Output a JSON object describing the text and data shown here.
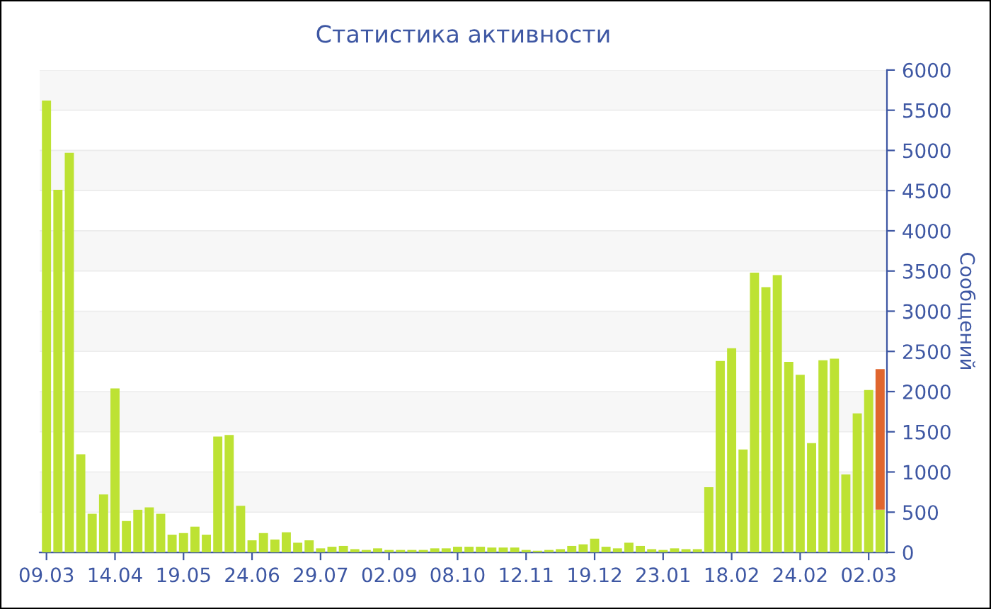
{
  "chart_data": {
    "type": "bar",
    "title": "Статистика активности",
    "ylabel": "Сообщений",
    "stacked": true,
    "categories": [
      "09.03",
      null,
      null,
      null,
      null,
      null,
      "14.04",
      null,
      null,
      null,
      null,
      null,
      "19.05",
      null,
      null,
      null,
      null,
      null,
      "24.06",
      null,
      null,
      null,
      null,
      null,
      "29.07",
      null,
      null,
      null,
      null,
      null,
      "02.09",
      null,
      null,
      null,
      null,
      null,
      "08.10",
      null,
      null,
      null,
      null,
      null,
      "12.11",
      null,
      null,
      null,
      null,
      null,
      "19.12",
      null,
      null,
      null,
      null,
      null,
      "23.01",
      null,
      null,
      null,
      null,
      null,
      "18.02",
      null,
      null,
      null,
      null,
      null,
      "24.02",
      null,
      null,
      null,
      null,
      null,
      "02.03",
      null
    ],
    "series": [
      {
        "color": "#bde233",
        "values": [
          5620,
          4510,
          4970,
          1220,
          480,
          720,
          2040,
          390,
          530,
          560,
          480,
          220,
          240,
          320,
          220,
          1440,
          1460,
          580,
          150,
          240,
          160,
          250,
          120,
          150,
          50,
          70,
          80,
          40,
          30,
          50,
          30,
          30,
          30,
          30,
          50,
          50,
          70,
          70,
          70,
          60,
          60,
          60,
          30,
          20,
          30,
          40,
          80,
          100,
          170,
          70,
          50,
          120,
          80,
          40,
          30,
          50,
          40,
          40,
          810,
          2380,
          2540,
          1280,
          3480,
          3300,
          3450,
          2370,
          2210,
          1360,
          2390,
          2410,
          970,
          1730,
          2020,
          530
        ]
      },
      {
        "color": "#e0662e",
        "values": [
          null,
          null,
          null,
          null,
          null,
          null,
          null,
          null,
          null,
          null,
          null,
          null,
          null,
          null,
          null,
          null,
          null,
          null,
          null,
          null,
          null,
          null,
          null,
          null,
          null,
          null,
          null,
          null,
          null,
          null,
          null,
          null,
          null,
          null,
          null,
          null,
          null,
          null,
          null,
          null,
          null,
          null,
          null,
          null,
          null,
          null,
          null,
          null,
          null,
          null,
          null,
          null,
          null,
          null,
          null,
          null,
          null,
          null,
          null,
          null,
          null,
          null,
          null,
          null,
          null,
          null,
          null,
          null,
          null,
          null,
          null,
          null,
          null,
          1750
        ]
      }
    ],
    "ylim": [
      0,
      6000
    ],
    "yticks": [
      0,
      500,
      1000,
      1500,
      2000,
      2500,
      3000,
      3500,
      4000,
      4500,
      5000,
      5500,
      6000
    ],
    "grid": "y",
    "legend": false
  }
}
